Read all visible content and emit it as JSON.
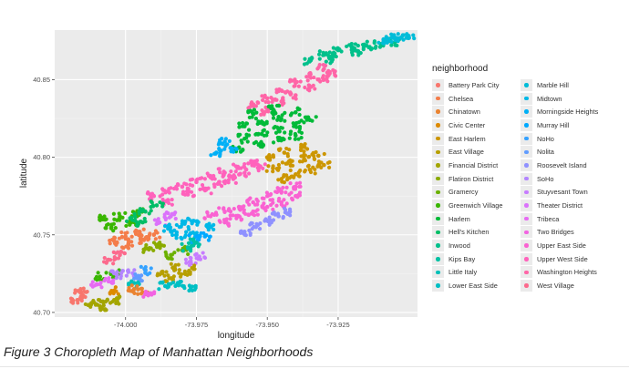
{
  "caption": "Figure 3 Choropleth Map of Manhattan Neighborhoods",
  "chart_data": {
    "type": "scatter",
    "title": "",
    "xlabel": "longitude",
    "ylabel": "latitude",
    "xlim": [
      -74.025,
      -73.897
    ],
    "ylim": [
      40.697,
      40.882
    ],
    "xticks": [
      -74.0,
      -73.975,
      -73.95,
      -73.925
    ],
    "xtick_labels": [
      "-74.000",
      "-73.975",
      "-73.950",
      "-73.925"
    ],
    "yticks": [
      40.7,
      40.75,
      40.8,
      40.85
    ],
    "ytick_labels": [
      "40.70",
      "40.75",
      "40.80",
      "40.85"
    ],
    "grid": true,
    "legend": {
      "title": "neighborhood",
      "position": "right",
      "columns": [
        [
          {
            "name": "Battery Park City",
            "color": "#F8766D"
          },
          {
            "name": "Chelsea",
            "color": "#F47D4A"
          },
          {
            "name": "Chinatown",
            "color": "#EA8331"
          },
          {
            "name": "Civic Center",
            "color": "#DD8A00"
          },
          {
            "name": "East Harlem",
            "color": "#CC9600"
          },
          {
            "name": "East Village",
            "color": "#B79F00"
          },
          {
            "name": "Financial District",
            "color": "#A3A500"
          },
          {
            "name": "Flatiron District",
            "color": "#8BAB00"
          },
          {
            "name": "Gramercy",
            "color": "#6BB100"
          },
          {
            "name": "Greenwich Village",
            "color": "#39B600"
          },
          {
            "name": "Harlem",
            "color": "#00BA38"
          },
          {
            "name": "Hell's Kitchen",
            "color": "#00BE67"
          },
          {
            "name": "Inwood",
            "color": "#00C08B"
          },
          {
            "name": "Kips Bay",
            "color": "#00C1A3"
          },
          {
            "name": "Little Italy",
            "color": "#00C0B8"
          },
          {
            "name": "Lower East Side",
            "color": "#00BFC4"
          }
        ],
        [
          {
            "name": "Marble Hill",
            "color": "#00BCD8"
          },
          {
            "name": "Midtown",
            "color": "#00B8E7"
          },
          {
            "name": "Morningside Heights",
            "color": "#00B0F6"
          },
          {
            "name": "Murray Hill",
            "color": "#00A9FF"
          },
          {
            "name": "NoHo",
            "color": "#35A2FF"
          },
          {
            "name": "Nolita",
            "color": "#619CFF"
          },
          {
            "name": "Roosevelt Island",
            "color": "#8F91FF"
          },
          {
            "name": "SoHo",
            "color": "#B385FF"
          },
          {
            "name": "Stuyvesant Town",
            "color": "#C77CFF"
          },
          {
            "name": "Theater District",
            "color": "#DB72FB"
          },
          {
            "name": "Tribeca",
            "color": "#E76BF3"
          },
          {
            "name": "Two Bridges",
            "color": "#F263E2"
          },
          {
            "name": "Upper East Side",
            "color": "#FA62D2"
          },
          {
            "name": "Upper West Side",
            "color": "#FF62BC"
          },
          {
            "name": "Washington Heights",
            "color": "#FF65A7"
          },
          {
            "name": "West Village",
            "color": "#FC6A8D"
          }
        ]
      ]
    },
    "series": [
      {
        "name": "Inwood",
        "color": "#00C08B",
        "points": [
          [
            -73.935,
            40.862
          ],
          [
            -73.93,
            40.866
          ],
          [
            -73.925,
            40.869
          ],
          [
            -73.92,
            40.871
          ],
          [
            -73.915,
            40.872
          ],
          [
            -73.91,
            40.873
          ],
          [
            -73.905,
            40.874
          ],
          [
            -73.927,
            40.863
          ],
          [
            -73.918,
            40.868
          ]
        ]
      },
      {
        "name": "Marble Hill",
        "color": "#00BCD8",
        "points": [
          [
            -73.909,
            40.876
          ],
          [
            -73.906,
            40.877
          ],
          [
            -73.903,
            40.877
          ],
          [
            -73.9,
            40.877
          ]
        ]
      },
      {
        "name": "Washington Heights",
        "color": "#FF65A7",
        "points": [
          [
            -73.955,
            40.833
          ],
          [
            -73.95,
            40.838
          ],
          [
            -73.945,
            40.843
          ],
          [
            -73.94,
            40.848
          ],
          [
            -73.935,
            40.852
          ],
          [
            -73.93,
            40.857
          ],
          [
            -73.945,
            40.836
          ],
          [
            -73.94,
            40.84
          ],
          [
            -73.935,
            40.845
          ],
          [
            -73.93,
            40.85
          ],
          [
            -73.928,
            40.854
          ],
          [
            -73.95,
            40.83
          ]
        ]
      },
      {
        "name": "Harlem",
        "color": "#00BA38",
        "points": [
          [
            -73.958,
            40.812
          ],
          [
            -73.952,
            40.815
          ],
          [
            -73.946,
            40.818
          ],
          [
            -73.94,
            40.821
          ],
          [
            -73.935,
            40.824
          ],
          [
            -73.958,
            40.82
          ],
          [
            -73.952,
            40.823
          ],
          [
            -73.946,
            40.826
          ],
          [
            -73.94,
            40.829
          ],
          [
            -73.955,
            40.828
          ],
          [
            -73.948,
            40.831
          ],
          [
            -73.96,
            40.806
          ],
          [
            -73.953,
            40.808
          ],
          [
            -73.946,
            40.811
          ],
          [
            -73.94,
            40.814
          ]
        ]
      },
      {
        "name": "Greenwich Village",
        "color": "#39B600",
        "points": [
          [
            -74.008,
            40.76
          ],
          [
            -74.002,
            40.762
          ],
          [
            -73.996,
            40.764
          ],
          [
            -74.005,
            40.755
          ],
          [
            -73.998,
            40.758
          ],
          [
            -74.009,
            40.723
          ],
          [
            -74.003,
            40.725
          ]
        ]
      },
      {
        "name": "East Harlem",
        "color": "#CC9600",
        "points": [
          [
            -73.945,
            40.786
          ],
          [
            -73.94,
            40.789
          ],
          [
            -73.935,
            40.792
          ],
          [
            -73.93,
            40.795
          ],
          [
            -73.948,
            40.793
          ],
          [
            -73.943,
            40.796
          ],
          [
            -73.937,
            40.799
          ],
          [
            -73.932,
            40.801
          ],
          [
            -73.95,
            40.8
          ],
          [
            -73.944,
            40.803
          ],
          [
            -73.938,
            40.806
          ]
        ]
      },
      {
        "name": "Morningside Heights",
        "color": "#00B0F6",
        "points": [
          [
            -73.968,
            40.803
          ],
          [
            -73.963,
            40.806
          ],
          [
            -73.965,
            40.81
          ]
        ]
      },
      {
        "name": "Upper West Side",
        "color": "#FF62BC",
        "points": [
          [
            -73.99,
            40.775
          ],
          [
            -73.985,
            40.778
          ],
          [
            -73.98,
            40.781
          ],
          [
            -73.975,
            40.784
          ],
          [
            -73.97,
            40.787
          ],
          [
            -73.965,
            40.79
          ],
          [
            -73.96,
            40.793
          ],
          [
            -73.955,
            40.796
          ],
          [
            -73.985,
            40.772
          ],
          [
            -73.978,
            40.776
          ],
          [
            -73.972,
            40.779
          ],
          [
            -73.967,
            40.783
          ],
          [
            -73.962,
            40.786
          ],
          [
            -73.958,
            40.79
          ],
          [
            -73.953,
            40.793
          ]
        ]
      },
      {
        "name": "Upper East Side",
        "color": "#FA62D2",
        "points": [
          [
            -73.97,
            40.762
          ],
          [
            -73.965,
            40.765
          ],
          [
            -73.96,
            40.768
          ],
          [
            -73.955,
            40.771
          ],
          [
            -73.95,
            40.775
          ],
          [
            -73.945,
            40.778
          ],
          [
            -73.94,
            40.781
          ],
          [
            -73.96,
            40.762
          ],
          [
            -73.955,
            40.765
          ],
          [
            -73.95,
            40.768
          ],
          [
            -73.945,
            40.771
          ],
          [
            -73.94,
            40.775
          ],
          [
            -73.965,
            40.758
          ]
        ]
      },
      {
        "name": "Roosevelt Island",
        "color": "#8F91FF",
        "points": [
          [
            -73.958,
            40.752
          ],
          [
            -73.954,
            40.755
          ],
          [
            -73.95,
            40.759
          ],
          [
            -73.946,
            40.762
          ],
          [
            -73.942,
            40.765
          ]
        ]
      },
      {
        "name": "Hell's Kitchen",
        "color": "#00BE67",
        "points": [
          [
            -73.998,
            40.761
          ],
          [
            -73.993,
            40.765
          ],
          [
            -73.989,
            40.769
          ],
          [
            -73.994,
            40.758
          ]
        ]
      },
      {
        "name": "Theater District",
        "color": "#DB72FB",
        "points": [
          [
            -73.988,
            40.758
          ],
          [
            -73.984,
            40.762
          ]
        ]
      },
      {
        "name": "Midtown",
        "color": "#00B8E7",
        "points": [
          [
            -73.985,
            40.754
          ],
          [
            -73.98,
            40.757
          ],
          [
            -73.976,
            40.759
          ],
          [
            -73.971,
            40.755
          ],
          [
            -73.977,
            40.751
          ],
          [
            -73.982,
            40.75
          ]
        ]
      },
      {
        "name": "Murray Hill",
        "color": "#00A9FF",
        "points": [
          [
            -73.976,
            40.747
          ],
          [
            -73.972,
            40.749
          ]
        ]
      },
      {
        "name": "Chelsea",
        "color": "#F47D4A",
        "points": [
          [
            -74.004,
            40.746
          ],
          [
            -74.0,
            40.749
          ],
          [
            -73.995,
            40.752
          ],
          [
            -73.999,
            40.744
          ],
          [
            -73.994,
            40.747
          ],
          [
            -73.99,
            40.75
          ]
        ]
      },
      {
        "name": "Flatiron District",
        "color": "#8BAB00",
        "points": [
          [
            -73.992,
            40.741
          ],
          [
            -73.988,
            40.744
          ]
        ]
      },
      {
        "name": "Gramercy",
        "color": "#6BB100",
        "points": [
          [
            -73.984,
            40.737
          ],
          [
            -73.98,
            40.74
          ]
        ]
      },
      {
        "name": "Kips Bay",
        "color": "#00C1A3",
        "points": [
          [
            -73.978,
            40.742
          ],
          [
            -73.975,
            40.745
          ]
        ]
      },
      {
        "name": "Stuyvesant Town",
        "color": "#C77CFF",
        "points": [
          [
            -73.977,
            40.733
          ],
          [
            -73.974,
            40.736
          ]
        ]
      },
      {
        "name": "West Village",
        "color": "#FC6A8D",
        "points": [
          [
            -74.006,
            40.734
          ],
          [
            -74.002,
            40.737
          ]
        ]
      },
      {
        "name": "East Village",
        "color": "#B79F00",
        "points": [
          [
            -73.987,
            40.726
          ],
          [
            -73.983,
            40.729
          ],
          [
            -73.979,
            40.725
          ],
          [
            -73.984,
            40.722
          ],
          [
            -73.976,
            40.728
          ]
        ]
      },
      {
        "name": "NoHo",
        "color": "#35A2FF",
        "points": [
          [
            -73.993,
            40.727
          ]
        ]
      },
      {
        "name": "SoHo",
        "color": "#B385FF",
        "points": [
          [
            -74.003,
            40.724
          ],
          [
            -73.999,
            40.726
          ]
        ]
      },
      {
        "name": "Nolita",
        "color": "#619CFF",
        "points": [
          [
            -73.995,
            40.722
          ]
        ]
      },
      {
        "name": "Little Italy",
        "color": "#00C0B8",
        "points": [
          [
            -73.997,
            40.719
          ]
        ]
      },
      {
        "name": "Lower East Side",
        "color": "#00BFC4",
        "points": [
          [
            -73.986,
            40.717
          ],
          [
            -73.981,
            40.719
          ],
          [
            -73.977,
            40.716
          ]
        ]
      },
      {
        "name": "Chinatown",
        "color": "#EA8331",
        "points": [
          [
            -73.997,
            40.715
          ],
          [
            -73.994,
            40.713
          ]
        ]
      },
      {
        "name": "Two Bridges",
        "color": "#F263E2",
        "points": [
          [
            -73.992,
            40.711
          ]
        ]
      },
      {
        "name": "Tribeca",
        "color": "#E76BF3",
        "points": [
          [
            -74.01,
            40.718
          ],
          [
            -74.006,
            40.72
          ]
        ]
      },
      {
        "name": "Civic Center",
        "color": "#DD8A00",
        "points": [
          [
            -74.004,
            40.714
          ]
        ]
      },
      {
        "name": "Financial District",
        "color": "#A3A500",
        "points": [
          [
            -74.012,
            40.706
          ],
          [
            -74.008,
            40.707
          ],
          [
            -74.004,
            40.708
          ],
          [
            -74.009,
            40.704
          ]
        ]
      },
      {
        "name": "Battery Park City",
        "color": "#F8766D",
        "points": [
          [
            -74.017,
            40.708
          ],
          [
            -74.015,
            40.711
          ],
          [
            -74.016,
            40.714
          ]
        ]
      }
    ]
  }
}
